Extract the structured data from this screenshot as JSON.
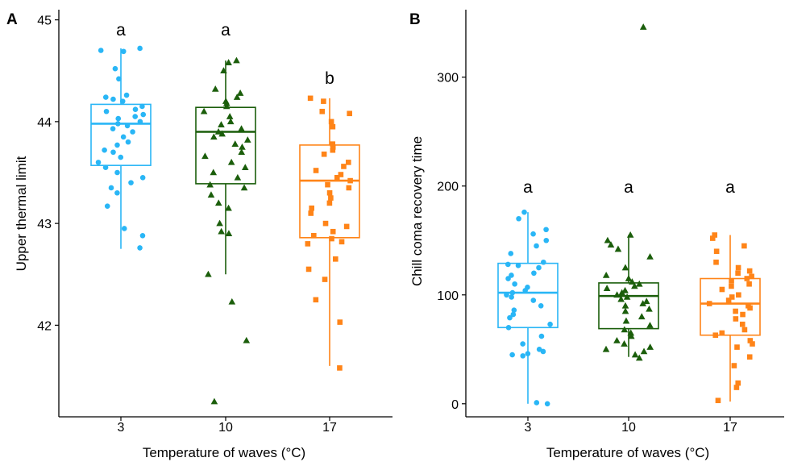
{
  "chart_data": [
    {
      "panel": "A",
      "type": "boxplot",
      "xlabel": "Temperature of waves (°C)",
      "ylabel": "Upper thermal limit",
      "categories": [
        "3",
        "10",
        "17"
      ],
      "yticks": [
        42,
        43,
        44,
        45
      ],
      "ylim": [
        41.1,
        45.1
      ],
      "grid": false,
      "boxes": [
        {
          "category": "3",
          "color": "#29b6f6",
          "marker": "circle",
          "whisker_low": 42.75,
          "q1": 43.57,
          "median": 43.98,
          "q3": 44.17,
          "whisker_high": 44.72,
          "letter": "a",
          "points": [
            44.72,
            44.7,
            44.69,
            44.52,
            44.42,
            44.26,
            44.24,
            44.22,
            44.2,
            44.15,
            44.12,
            44.1,
            44.07,
            44.05,
            44.03,
            44.0,
            43.98,
            43.96,
            43.93,
            43.9,
            43.85,
            43.8,
            43.77,
            43.72,
            43.7,
            43.65,
            43.6,
            43.55,
            43.5,
            43.45,
            43.4,
            43.35,
            43.3,
            43.17,
            42.95,
            42.88,
            42.76
          ]
        },
        {
          "category": "10",
          "color": "#1b5e0b",
          "marker": "triangle",
          "whisker_low": 42.5,
          "q1": 43.39,
          "median": 43.9,
          "q3": 44.14,
          "whisker_high": 44.6,
          "letter": "a",
          "points": [
            44.6,
            44.58,
            44.5,
            44.32,
            44.28,
            44.24,
            44.2,
            44.18,
            44.15,
            44.1,
            44.05,
            44.0,
            43.97,
            43.93,
            43.9,
            43.88,
            43.85,
            43.82,
            43.78,
            43.75,
            43.7,
            43.66,
            43.6,
            43.55,
            43.5,
            43.45,
            43.38,
            43.35,
            43.28,
            43.2,
            43.15,
            43.0,
            42.92,
            42.9,
            42.5,
            42.23,
            41.85,
            41.25
          ]
        },
        {
          "category": "17",
          "color": "#ff8418",
          "marker": "square",
          "whisker_low": 41.6,
          "q1": 42.86,
          "median": 43.42,
          "q3": 43.77,
          "whisker_high": 44.23,
          "letter": "b",
          "points": [
            44.23,
            44.2,
            44.1,
            44.08,
            44.0,
            43.95,
            43.78,
            43.75,
            43.72,
            43.68,
            43.6,
            43.56,
            43.52,
            43.48,
            43.45,
            43.42,
            43.38,
            43.35,
            43.3,
            43.25,
            43.2,
            43.15,
            43.1,
            43.0,
            42.97,
            42.92,
            42.88,
            42.85,
            42.82,
            42.8,
            42.65,
            42.55,
            42.45,
            42.25,
            42.03,
            41.58
          ]
        }
      ]
    },
    {
      "panel": "B",
      "type": "boxplot",
      "xlabel": "Temperature of waves (°C)",
      "ylabel": "Chill coma recovery time",
      "categories": [
        "3",
        "10",
        "17"
      ],
      "yticks": [
        0,
        100,
        200,
        300
      ],
      "ylim": [
        -12,
        362
      ],
      "grid": false,
      "boxes": [
        {
          "category": "3",
          "color": "#29b6f6",
          "marker": "circle",
          "whisker_low": 0,
          "q1": 70,
          "median": 102,
          "q3": 129,
          "whisker_high": 176,
          "letter": "a",
          "points": [
            176,
            170,
            160,
            156,
            150,
            145,
            138,
            130,
            128,
            127,
            125,
            120,
            118,
            115,
            110,
            107,
            104,
            102,
            100,
            98,
            95,
            90,
            86,
            82,
            79,
            73,
            70,
            62,
            55,
            50,
            48,
            46,
            45,
            44,
            1,
            0
          ]
        },
        {
          "category": "10",
          "color": "#1b5e0b",
          "marker": "triangle",
          "whisker_low": 43,
          "q1": 69,
          "median": 99,
          "q3": 111,
          "whisker_high": 155,
          "letter": "a",
          "points": [
            346,
            155,
            150,
            146,
            142,
            135,
            125,
            118,
            115,
            112,
            110,
            108,
            106,
            104,
            102,
            100,
            98,
            96,
            94,
            92,
            90,
            87,
            85,
            80,
            76,
            72,
            68,
            65,
            62,
            58,
            55,
            52,
            50,
            48,
            45,
            42
          ]
        },
        {
          "category": "17",
          "color": "#ff8418",
          "marker": "square",
          "whisker_low": 2,
          "q1": 63,
          "median": 92,
          "q3": 115,
          "whisker_high": 155,
          "letter": "a",
          "points": [
            155,
            152,
            145,
            140,
            130,
            125,
            122,
            120,
            117,
            115,
            113,
            110,
            108,
            105,
            100,
            98,
            95,
            92,
            90,
            88,
            85,
            82,
            78,
            73,
            68,
            65,
            63,
            58,
            55,
            52,
            43,
            35,
            19,
            15,
            3
          ]
        }
      ]
    }
  ]
}
